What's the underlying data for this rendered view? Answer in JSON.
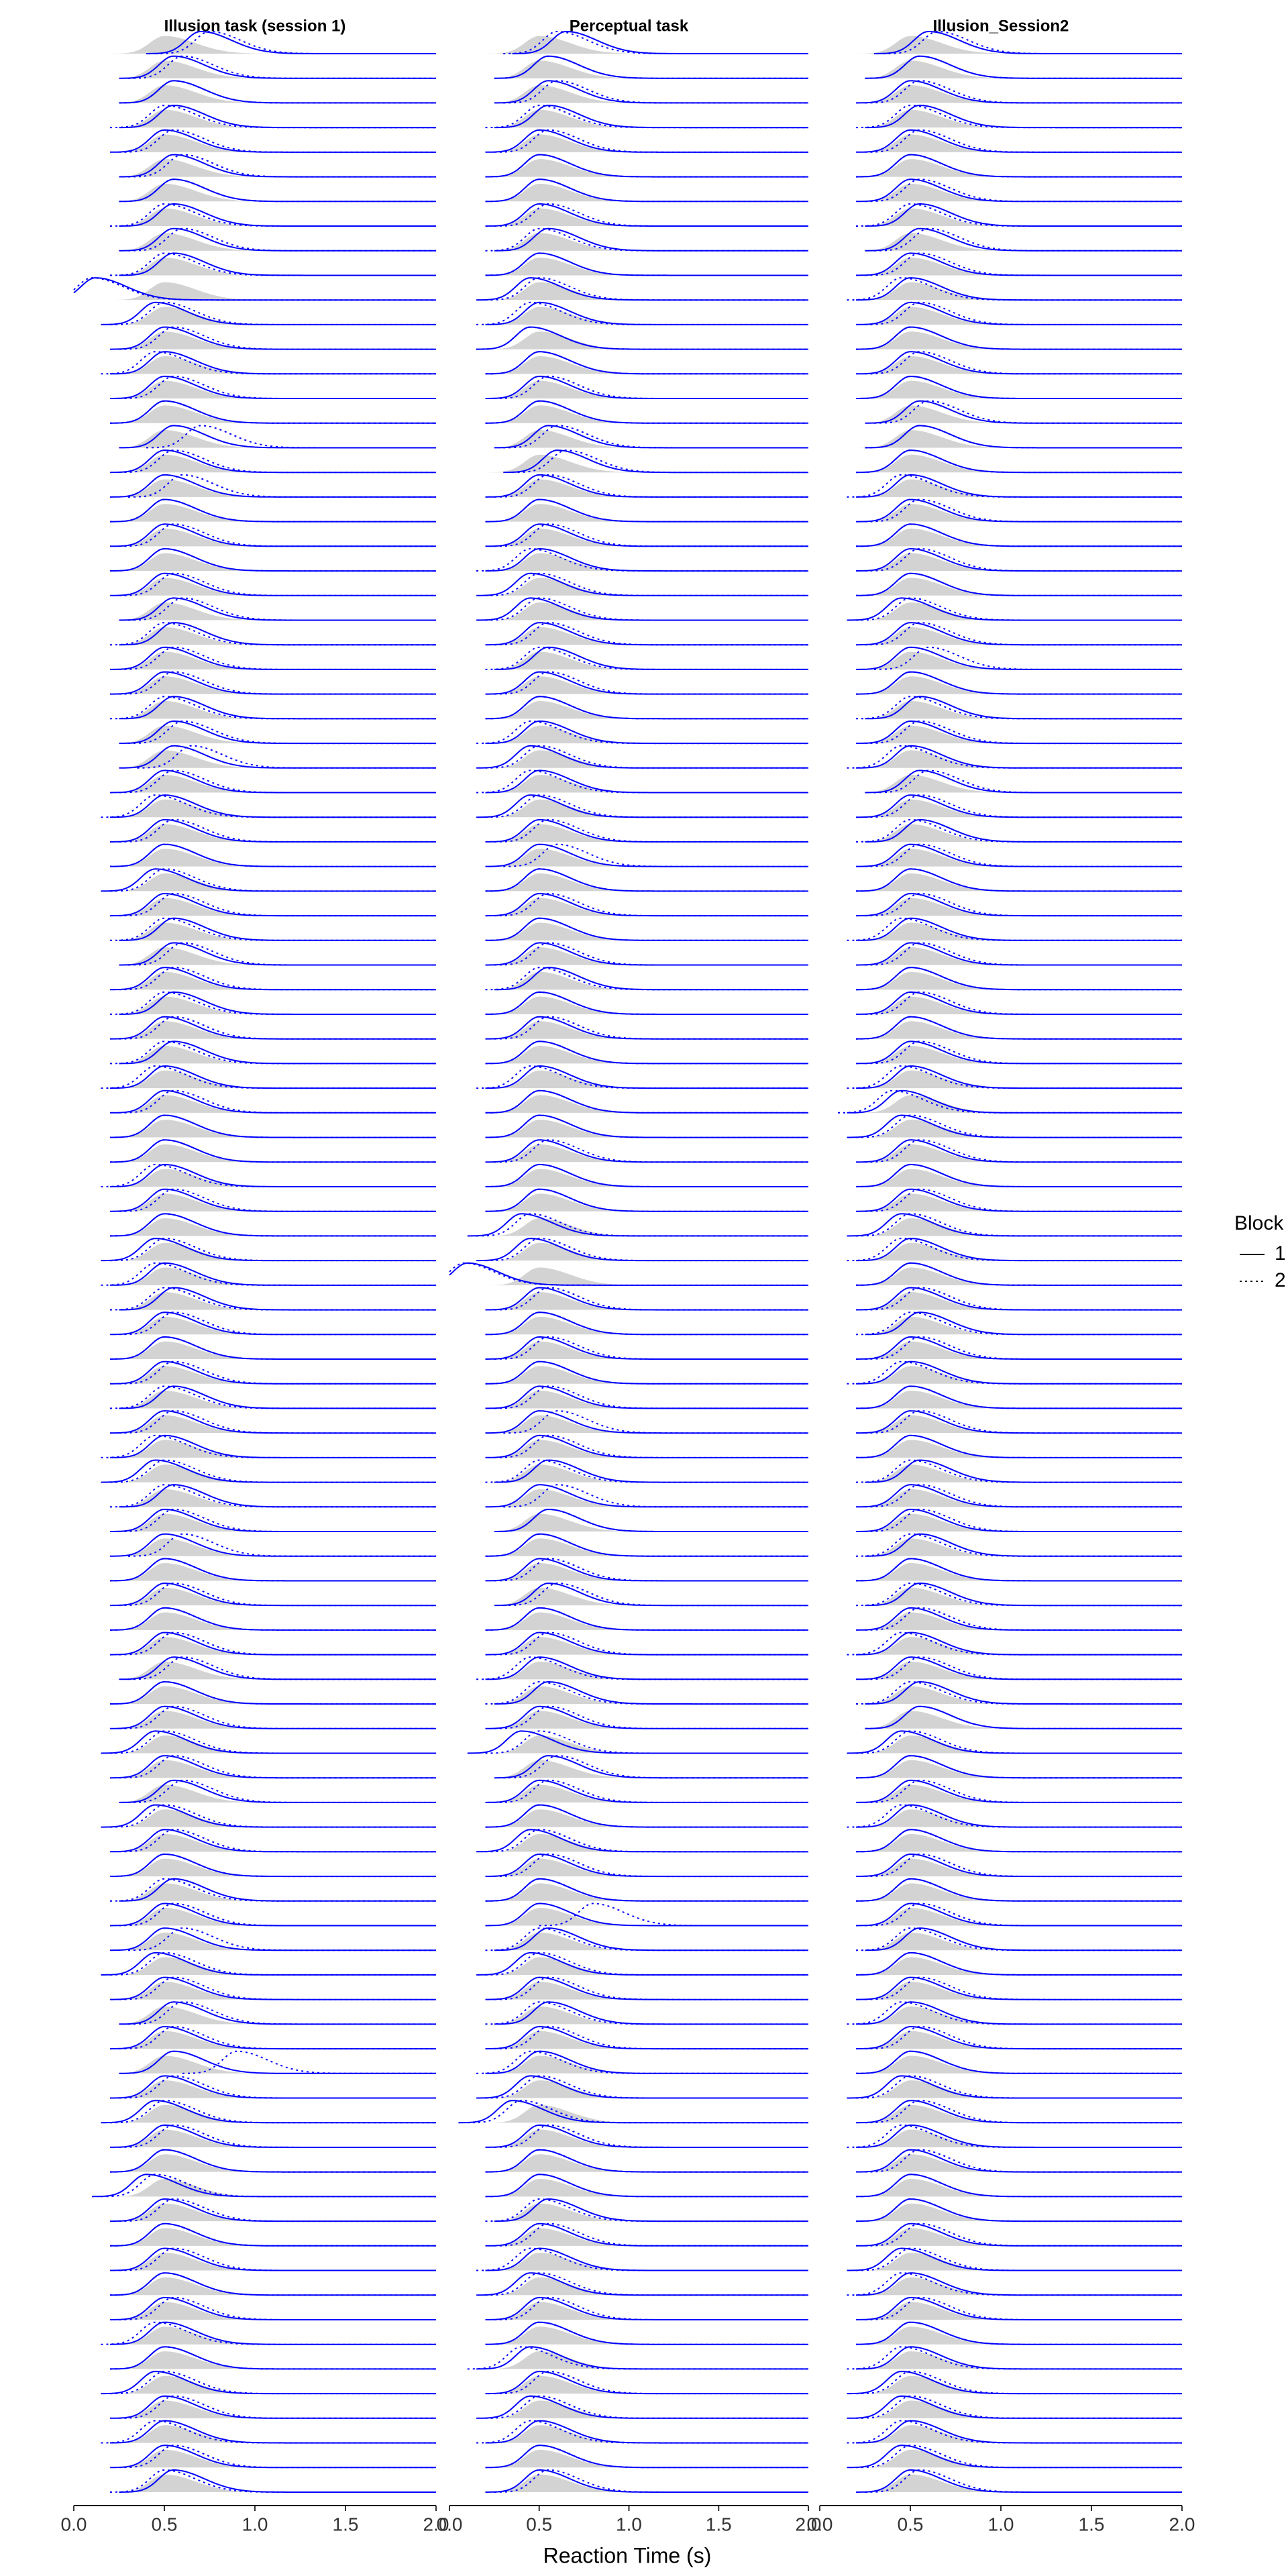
{
  "chart_data": [
    {
      "type": "ridgeline",
      "title": "Illusion task (session 1)",
      "xlim": [
        0,
        2
      ],
      "xticks": [
        {
          "value": 0,
          "label": "0.0"
        },
        0.5,
        {
          "value": 1,
          "label": "1.0"
        },
        1.5,
        {
          "value": 2,
          "label": "2.0"
        }
      ],
      "legend_title": "Block",
      "series": [
        {
          "name": "1",
          "color": "#0000ff",
          "line_style": "solid",
          "values": [
            0.7,
            0.55,
            0.55,
            0.55,
            0.5,
            0.55,
            0.55,
            0.55,
            0.55,
            0.55,
            0.12,
            0.45,
            0.5,
            0.5,
            0.5,
            0.5,
            0.55,
            0.5,
            0.5,
            0.5,
            0.5,
            0.5,
            0.5,
            0.55,
            0.55,
            0.5,
            0.5,
            0.55,
            0.55,
            0.55,
            0.5,
            0.5,
            0.5,
            0.5,
            0.45,
            0.5,
            0.55,
            0.55,
            0.5,
            0.55,
            0.5,
            0.55,
            0.5,
            0.5,
            0.5,
            0.5,
            0.5,
            0.5,
            0.5,
            0.45,
            0.5,
            0.55,
            0.5,
            0.5,
            0.5,
            0.55,
            0.5,
            0.5,
            0.45,
            0.55,
            0.5,
            0.5,
            0.5,
            0.5,
            0.5,
            0.5,
            0.55,
            0.5,
            0.5,
            0.45,
            0.5,
            0.55,
            0.45,
            0.5,
            0.5,
            0.55,
            0.5,
            0.5,
            0.45,
            0.5,
            0.55,
            0.5,
            0.55,
            0.5,
            0.45,
            0.5,
            0.5,
            0.4,
            0.5,
            0.5,
            0.5,
            0.5,
            0.5,
            0.5,
            0.5,
            0.45,
            0.5,
            0.5,
            0.5,
            0.55
          ]
        },
        {
          "name": "2",
          "color": "#0000ff",
          "line_style": "dotted",
          "values": [
            0.75,
            0.6,
            0.55,
            0.5,
            0.55,
            0.6,
            0.55,
            0.5,
            0.6,
            0.5,
            0.1,
            0.5,
            0.55,
            0.45,
            0.55,
            0.5,
            0.7,
            0.55,
            0.6,
            0.5,
            0.55,
            0.5,
            0.55,
            0.6,
            0.5,
            0.55,
            0.55,
            0.5,
            0.6,
            0.65,
            0.55,
            0.45,
            0.55,
            0.5,
            0.5,
            0.55,
            0.5,
            0.6,
            0.55,
            0.5,
            0.55,
            0.5,
            0.45,
            0.55,
            0.5,
            0.5,
            0.45,
            0.55,
            0.5,
            0.5,
            0.45,
            0.5,
            0.55,
            0.5,
            0.55,
            0.5,
            0.55,
            0.45,
            0.5,
            0.5,
            0.55,
            0.6,
            0.5,
            0.55,
            0.5,
            0.55,
            0.6,
            0.5,
            0.55,
            0.5,
            0.55,
            0.6,
            0.5,
            0.55,
            0.5,
            0.5,
            0.55,
            0.6,
            0.5,
            0.55,
            0.6,
            0.55,
            0.9,
            0.55,
            0.5,
            0.55,
            0.5,
            0.45,
            0.55,
            0.5,
            0.55,
            0.5,
            0.55,
            0.45,
            0.5,
            0.5,
            0.55,
            0.45,
            0.55,
            0.5
          ]
        }
      ]
    },
    {
      "type": "ridgeline",
      "title": "Perceptual task",
      "xlim": [
        0,
        2
      ],
      "xticks": [
        {
          "value": 0,
          "label": "0.0"
        },
        0.5,
        {
          "value": 1,
          "label": "1.0"
        },
        1.5,
        {
          "value": 2,
          "label": "2.0"
        }
      ],
      "xlabel": "Reaction Time (s)",
      "series": [
        {
          "name": "1",
          "color": "#0000ff",
          "line_style": "solid",
          "values": [
            0.65,
            0.55,
            0.55,
            0.55,
            0.5,
            0.5,
            0.5,
            0.5,
            0.55,
            0.5,
            0.45,
            0.5,
            0.45,
            0.5,
            0.5,
            0.5,
            0.55,
            0.6,
            0.5,
            0.5,
            0.5,
            0.5,
            0.45,
            0.45,
            0.5,
            0.55,
            0.5,
            0.5,
            0.5,
            0.45,
            0.5,
            0.45,
            0.5,
            0.5,
            0.5,
            0.5,
            0.5,
            0.5,
            0.55,
            0.5,
            0.5,
            0.5,
            0.5,
            0.5,
            0.5,
            0.5,
            0.5,
            0.5,
            0.4,
            0.45,
            0.1,
            0.5,
            0.5,
            0.5,
            0.5,
            0.5,
            0.5,
            0.5,
            0.55,
            0.5,
            0.55,
            0.5,
            0.5,
            0.55,
            0.5,
            0.5,
            0.5,
            0.55,
            0.5,
            0.4,
            0.55,
            0.5,
            0.5,
            0.45,
            0.5,
            0.5,
            0.5,
            0.55,
            0.45,
            0.5,
            0.55,
            0.5,
            0.5,
            0.45,
            0.35,
            0.5,
            0.5,
            0.5,
            0.55,
            0.5,
            0.5,
            0.45,
            0.5,
            0.5,
            0.45,
            0.5,
            0.45,
            0.5,
            0.5,
            0.5
          ]
        },
        {
          "name": "2",
          "color": "#0000ff",
          "line_style": "dotted",
          "values": [
            0.6,
            0.55,
            0.6,
            0.5,
            0.55,
            0.5,
            0.5,
            0.55,
            0.5,
            0.5,
            0.5,
            0.45,
            0.45,
            0.5,
            0.55,
            0.5,
            0.6,
            0.65,
            0.55,
            0.5,
            0.55,
            0.45,
            0.5,
            0.5,
            0.55,
            0.5,
            0.55,
            0.5,
            0.45,
            0.5,
            0.45,
            0.5,
            0.55,
            0.6,
            0.5,
            0.55,
            0.5,
            0.55,
            0.5,
            0.5,
            0.55,
            0.5,
            0.45,
            0.5,
            0.5,
            0.55,
            0.5,
            0.5,
            0.45,
            0.5,
            0.08,
            0.55,
            0.5,
            0.55,
            0.5,
            0.55,
            0.6,
            0.55,
            0.5,
            0.6,
            0.55,
            0.5,
            0.55,
            0.6,
            0.5,
            0.55,
            0.45,
            0.5,
            0.55,
            0.5,
            0.6,
            0.55,
            0.5,
            0.5,
            0.55,
            0.5,
            0.8,
            0.5,
            0.5,
            0.55,
            0.5,
            0.55,
            0.45,
            0.5,
            0.4,
            0.55,
            0.5,
            0.5,
            0.5,
            0.55,
            0.45,
            0.5,
            0.55,
            0.5,
            0.4,
            0.55,
            0.5,
            0.45,
            0.5,
            0.55
          ]
        }
      ]
    },
    {
      "type": "ridgeline",
      "title": "Illusion_Session2",
      "xlim": [
        0,
        2
      ],
      "xticks": [
        {
          "value": 0,
          "label": "0.0"
        },
        0.5,
        {
          "value": 1,
          "label": "1.0"
        },
        1.5,
        {
          "value": 2,
          "label": "2.0"
        }
      ],
      "series": [
        {
          "name": "1",
          "color": "#0000ff",
          "line_style": "solid",
          "values": [
            0.6,
            0.55,
            0.5,
            0.55,
            0.5,
            0.5,
            0.5,
            0.55,
            0.55,
            0.5,
            0.5,
            0.5,
            0.5,
            0.5,
            0.5,
            0.55,
            0.55,
            0.5,
            0.5,
            0.5,
            0.5,
            0.5,
            0.5,
            0.45,
            0.5,
            0.5,
            0.5,
            0.55,
            0.5,
            0.5,
            0.55,
            0.5,
            0.55,
            0.5,
            0.5,
            0.5,
            0.5,
            0.5,
            0.5,
            0.5,
            0.5,
            0.5,
            0.5,
            0.45,
            0.45,
            0.5,
            0.5,
            0.5,
            0.45,
            0.5,
            0.5,
            0.5,
            0.55,
            0.5,
            0.5,
            0.5,
            0.5,
            0.5,
            0.55,
            0.5,
            0.5,
            0.55,
            0.5,
            0.55,
            0.5,
            0.5,
            0.5,
            0.55,
            0.55,
            0.45,
            0.5,
            0.5,
            0.5,
            0.5,
            0.5,
            0.5,
            0.5,
            0.55,
            0.5,
            0.5,
            0.5,
            0.5,
            0.5,
            0.45,
            0.5,
            0.5,
            0.5,
            0.5,
            0.5,
            0.5,
            0.45,
            0.5,
            0.5,
            0.5,
            0.5,
            0.45,
            0.45,
            0.5,
            0.45,
            0.5
          ]
        },
        {
          "name": "2",
          "color": "#0000ff",
          "line_style": "dotted",
          "values": [
            0.65,
            0.55,
            0.55,
            0.5,
            0.55,
            0.5,
            0.55,
            0.5,
            0.6,
            0.55,
            0.45,
            0.55,
            0.5,
            0.55,
            0.5,
            0.6,
            0.55,
            0.5,
            0.45,
            0.55,
            0.5,
            0.55,
            0.5,
            0.5,
            0.55,
            0.6,
            0.5,
            0.5,
            0.55,
            0.45,
            0.6,
            0.55,
            0.5,
            0.55,
            0.5,
            0.55,
            0.45,
            0.55,
            0.5,
            0.55,
            0.5,
            0.55,
            0.45,
            0.4,
            0.5,
            0.55,
            0.5,
            0.55,
            0.5,
            0.45,
            0.5,
            0.55,
            0.5,
            0.55,
            0.45,
            0.5,
            0.55,
            0.5,
            0.5,
            0.55,
            0.55,
            0.5,
            0.5,
            0.5,
            0.55,
            0.45,
            0.55,
            0.5,
            0.55,
            0.5,
            0.5,
            0.55,
            0.45,
            0.5,
            0.55,
            0.5,
            0.55,
            0.5,
            0.5,
            0.55,
            0.45,
            0.55,
            0.5,
            0.5,
            0.55,
            0.45,
            0.55,
            0.5,
            0.5,
            0.55,
            0.5,
            0.45,
            0.55,
            0.5,
            0.45,
            0.5,
            0.5,
            0.45,
            0.5,
            0.55
          ]
        }
      ]
    }
  ]
}
